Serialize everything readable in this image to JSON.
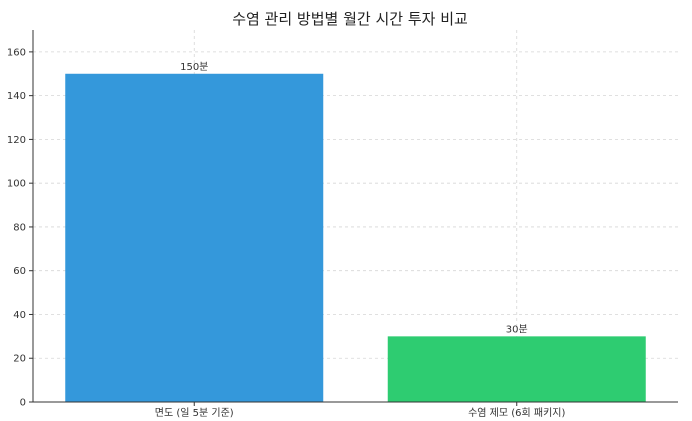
{
  "chart_data": {
    "type": "bar",
    "title": "수염 관리 방법별 월간 시간 투자 비교",
    "xlabel": "",
    "ylabel": "",
    "categories": [
      "면도 (일 5분 기준)",
      "수염 제모 (6회 패키지)"
    ],
    "values": [
      150,
      30
    ],
    "value_labels": [
      "150분",
      "30분"
    ],
    "colors": [
      "#3498db",
      "#2ecc71"
    ],
    "ylim": [
      0,
      170
    ],
    "yticks": [
      0,
      20,
      40,
      60,
      80,
      100,
      120,
      140,
      160
    ],
    "grid": true
  }
}
